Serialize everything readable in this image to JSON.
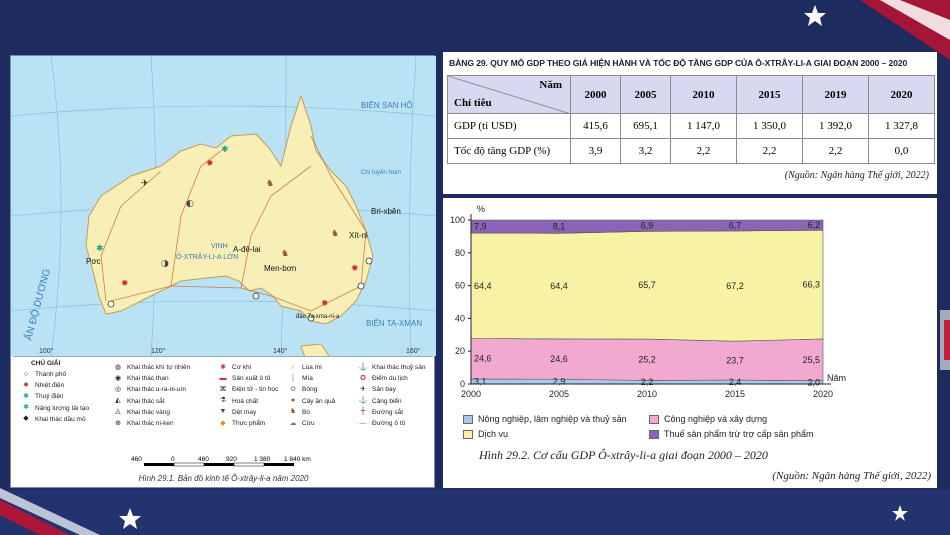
{
  "map": {
    "labels": {
      "bien_san_ho": "BIỂN SAN HÔ",
      "bien_taxman": "BIỂN TA-XMAN",
      "an_do_duong": "ẤN ĐỘ DƯƠNG",
      "vinh": "VỊNH",
      "o_xtray_li_a_lon": "Ô-XTRÂY-LI-A LỚN",
      "brixben": "Bri-xbên",
      "xitni": "Xít-ni",
      "adolai": "A-đê-lai",
      "menbon": "Men-bơn",
      "poc": "Pơc",
      "ta_xma_ni_a": "đảo Ta-xma-ni-a",
      "chi_tuyen_nam": "Chí tuyến Nam",
      "lat_lon": [
        "100°",
        "120°",
        "140°",
        "160°"
      ]
    },
    "legend_title": "CHÚ GIẢI",
    "legend_col1": [
      "Thành phố",
      "Nhiệt điện",
      "Thuỷ điện",
      "Năng lượng tái tạo",
      "Khai thác dầu mỏ"
    ],
    "legend_col2": [
      "Khai thác khí tự nhiên",
      "Khai thác than",
      "Khai thác u-ra-ni-um",
      "Khai thác sắt",
      "Khai thác vàng",
      "Khai thác ni-ken"
    ],
    "legend_col3": [
      "Cơ khí",
      "Sản xuất ô tô",
      "Điện tử - tin học",
      "Hoá chất",
      "Dệt may",
      "Thực phẩm"
    ],
    "legend_col4": [
      "Lúa mì",
      "Mía",
      "Bông",
      "Cây ăn quả",
      "Bò",
      "Cừu"
    ],
    "legend_col5": [
      "Khai thác thuỷ sản",
      "Điểm du lịch",
      "Sân bay",
      "Cảng biển",
      "Đường sắt",
      "Đường ô tô"
    ],
    "scale": [
      "460",
      "0",
      "460",
      "920",
      "1 380",
      "1 840 km"
    ],
    "caption": "Hình 29.1. Bản đồ kinh tế Ô-xtrây-li-a năm 2020"
  },
  "table": {
    "title": "BẢNG 29. QUY MÔ GDP THEO GIÁ HIỆN HÀNH VÀ TỐC ĐỘ TĂNG GDP CỦA Ô-XTRÂY-LI-A GIAI ĐOẠN 2000 – 2020",
    "header_year": "Năm",
    "header_indicator": "Chỉ tiêu",
    "years": [
      "2000",
      "2005",
      "2010",
      "2015",
      "2019",
      "2020"
    ],
    "rows": [
      {
        "label": "GDP (tỉ USD)",
        "values": [
          "415,6",
          "695,1",
          "1 147,0",
          "1 350,0",
          "1 392,0",
          "1 327,8"
        ]
      },
      {
        "label": "Tốc độ tăng GDP (%)",
        "values": [
          "3,9",
          "3,2",
          "2,2",
          "2,2",
          "2,2",
          "0,0"
        ]
      }
    ],
    "source": "(Nguồn: Ngân hàng Thế giới, 2022)"
  },
  "chart_data": {
    "type": "area",
    "title": "Hình 29.2. Cơ cấu GDP Ô-xtrây-li-a giai đoạn 2000 – 2020",
    "ylabel": "%",
    "xlabel": "Năm",
    "x": [
      2000,
      2005,
      2010,
      2015,
      2020
    ],
    "ylim": [
      0,
      100
    ],
    "yticks": [
      0,
      20,
      40,
      60,
      80,
      100
    ],
    "series": [
      {
        "name": "Nông nghiệp, lâm nghiệp và thuỷ sản",
        "values": [
          3.1,
          2.9,
          2.2,
          2.4,
          2.0
        ],
        "color": "#a9c8ee"
      },
      {
        "name": "Công nghiệp và xây dựng",
        "values": [
          24.6,
          24.6,
          25.2,
          23.7,
          25.5
        ],
        "color": "#f2a9cf"
      },
      {
        "name": "Dịch vụ",
        "values": [
          64.4,
          64.4,
          65.7,
          67.2,
          66.3
        ],
        "color": "#f8f3a4"
      },
      {
        "name": "Thuế sản phẩm trừ trợ cấp sản phẩm",
        "values": [
          7.9,
          8.1,
          6.9,
          6.7,
          6.2
        ],
        "color": "#8b64b5"
      }
    ],
    "labels": [
      [
        "3,1",
        "2,9",
        "2,2",
        "2,4",
        "2,0"
      ],
      [
        "24,6",
        "24,6",
        "25,2",
        "23,7",
        "25,5"
      ],
      [
        "64,4",
        "64,4",
        "65,7",
        "67,2",
        "66,3"
      ],
      [
        "7,9",
        "8,1",
        "6,9",
        "6,7",
        "6,2"
      ]
    ],
    "source": "(Nguồn: Ngân hàng Thế giới, 2022)"
  }
}
